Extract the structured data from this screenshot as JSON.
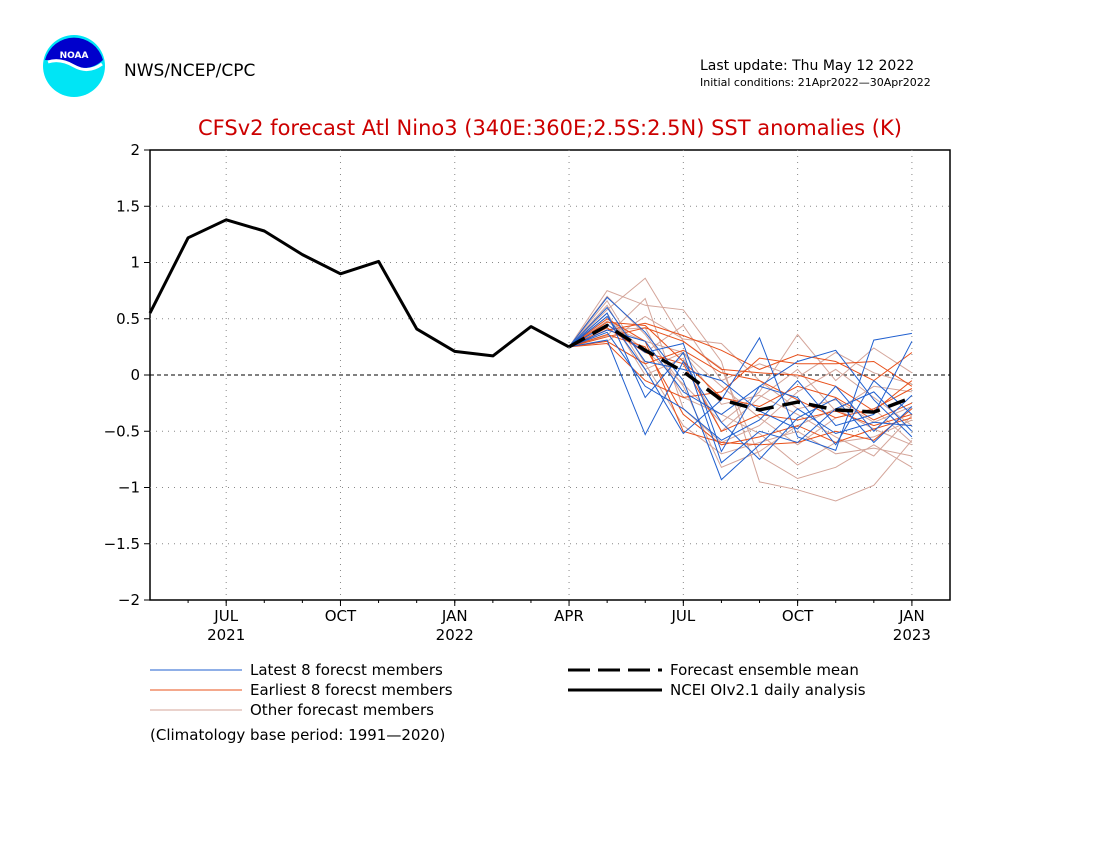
{
  "header": {
    "org": "NWS/NCEP/CPC",
    "last_update": "Last update: Thu May 12 2022",
    "initial_conditions": "Initial conditions: 21Apr2022—30Apr2022",
    "logo_text": "NOAA"
  },
  "chart_data": {
    "type": "line",
    "title": "CFSv2 forecast Atl Nino3 (340E:360E;2.5S:2.5N) SST anomalies (K)",
    "ylabel": "",
    "xlabel": "",
    "ylim": [
      -2,
      2
    ],
    "xlim": [
      "2021-05",
      "2023-02"
    ],
    "grid": true,
    "zero_line": true,
    "yticks": [
      "2",
      "1.5",
      "1",
      "0.5",
      "0",
      "−0.5",
      "−1",
      "−1.5",
      "−2"
    ],
    "ytick_values": [
      2,
      1.5,
      1,
      0.5,
      0,
      -0.5,
      -1,
      -1.5,
      -2
    ],
    "xticks": [
      {
        "month": 2,
        "label": "JUL",
        "year": "2021"
      },
      {
        "month": 5,
        "label": "OCT",
        "year": ""
      },
      {
        "month": 8,
        "label": "JAN",
        "year": "2022"
      },
      {
        "month": 11,
        "label": "APR",
        "year": ""
      },
      {
        "month": 14,
        "label": "JUL",
        "year": ""
      },
      {
        "month": 17,
        "label": "OCT",
        "year": ""
      },
      {
        "month": 20,
        "label": "JAN",
        "year": "2023"
      }
    ],
    "observed": {
      "name": "NCEI OIv2.1 daily analysis",
      "color": "#000000",
      "x": [
        0,
        1,
        2,
        3,
        4,
        5,
        6,
        7,
        8,
        9,
        10,
        11
      ],
      "values": [
        0.55,
        1.22,
        1.38,
        1.28,
        1.07,
        0.9,
        1.01,
        0.41,
        0.21,
        0.17,
        0.43,
        0.25
      ]
    },
    "ensemble_mean": {
      "name": "Forecast ensemble mean",
      "color": "#000000",
      "x": [
        11,
        12,
        13,
        14,
        15,
        16,
        17,
        18,
        19,
        20
      ],
      "values": [
        0.25,
        0.44,
        0.22,
        0.03,
        -0.22,
        -0.31,
        -0.24,
        -0.31,
        -0.33,
        -0.2
      ]
    },
    "members": {
      "x": [
        11,
        12,
        13,
        14,
        15,
        16,
        17,
        18,
        19,
        20
      ],
      "latest": {
        "name": "Latest 8 forecst members",
        "color": "#1f5fcf",
        "series": [
          [
            0.25,
            0.69,
            0.38,
            -0.05,
            -0.93,
            -0.62,
            -0.3,
            -0.52,
            -0.42,
            -0.45
          ],
          [
            0.25,
            0.52,
            0.05,
            -0.52,
            -0.22,
            0.33,
            -0.55,
            -0.67,
            0.31,
            0.37
          ],
          [
            0.25,
            0.31,
            -0.53,
            0.12,
            -0.42,
            -0.75,
            -0.38,
            -0.21,
            -0.6,
            -0.28
          ],
          [
            0.25,
            0.45,
            0.2,
            0.28,
            -0.68,
            -0.1,
            0.12,
            0.22,
            -0.22,
            -0.55
          ],
          [
            0.25,
            0.38,
            -0.1,
            -0.3,
            -0.58,
            -0.4,
            -0.05,
            -0.45,
            -0.35,
            0.3
          ],
          [
            0.25,
            0.6,
            0.12,
            0.05,
            -0.05,
            -0.32,
            -0.48,
            -0.1,
            -0.5,
            -0.18
          ],
          [
            0.25,
            0.4,
            0.3,
            -0.15,
            -0.35,
            -0.1,
            -0.2,
            -0.62,
            -0.05,
            -0.35
          ],
          [
            0.25,
            0.55,
            -0.2,
            0.2,
            -0.78,
            -0.5,
            -0.6,
            -0.3,
            -0.15,
            -0.5
          ]
        ]
      },
      "earliest": {
        "name": "Earliest 8 forecst members",
        "color": "#e8501a",
        "series": [
          [
            0.25,
            0.4,
            0.46,
            0.35,
            0.22,
            0.05,
            0.18,
            0.12,
            -0.05,
            0.2
          ],
          [
            0.25,
            0.34,
            0.42,
            0.3,
            0.05,
            0.02,
            0.0,
            -0.1,
            -0.32,
            -0.05
          ],
          [
            0.25,
            0.5,
            0.3,
            -0.5,
            -0.6,
            -0.62,
            -0.6,
            -0.5,
            -0.58,
            -0.3
          ],
          [
            0.25,
            0.42,
            0.2,
            0.1,
            -0.5,
            -0.35,
            -0.4,
            -0.32,
            -0.45,
            -0.35
          ],
          [
            0.25,
            0.28,
            -0.05,
            -0.2,
            -0.15,
            0.15,
            0.1,
            0.1,
            0.12,
            -0.1
          ],
          [
            0.25,
            0.47,
            0.44,
            0.12,
            -0.2,
            -0.28,
            -0.1,
            -0.2,
            -0.4,
            -0.25
          ],
          [
            0.25,
            0.36,
            0.25,
            -0.35,
            -0.62,
            -0.55,
            -0.45,
            -0.6,
            -0.48,
            -0.38
          ],
          [
            0.25,
            0.3,
            0.1,
            0.22,
            0.02,
            -0.05,
            -0.22,
            -0.38,
            -0.3,
            -0.12
          ]
        ]
      },
      "other": {
        "name": "Other forecast members",
        "color": "#d4a59a",
        "series": [
          [
            0.25,
            0.75,
            0.62,
            0.58,
            0.12,
            -0.95,
            -1.02,
            -1.12,
            -0.98,
            -0.58
          ],
          [
            0.25,
            0.58,
            0.86,
            0.3,
            0.06,
            -0.72,
            -0.92,
            -0.82,
            -0.62,
            -0.82
          ],
          [
            0.25,
            0.48,
            0.22,
            -0.08,
            -0.42,
            -0.15,
            0.36,
            -0.05,
            0.24,
            0.02
          ],
          [
            0.25,
            0.62,
            0.05,
            0.2,
            -0.26,
            -0.18,
            -0.35,
            -0.55,
            -0.72,
            -0.36
          ],
          [
            0.25,
            0.35,
            0.68,
            -0.3,
            -0.6,
            -0.45,
            -0.15,
            0.05,
            -0.2,
            -0.45
          ],
          [
            0.25,
            0.44,
            0.3,
            0.2,
            -0.1,
            -0.38,
            -0.62,
            -0.38,
            -0.3,
            -0.6
          ],
          [
            0.25,
            0.66,
            0.1,
            -0.45,
            -0.7,
            -0.6,
            -0.5,
            -0.7,
            -0.65,
            -0.72
          ],
          [
            0.25,
            0.3,
            0.52,
            0.32,
            0.28,
            -0.05,
            -0.3,
            -0.22,
            -0.42,
            -0.28
          ],
          [
            0.25,
            0.55,
            0.0,
            0.15,
            -0.5,
            -0.2,
            0.05,
            -0.32,
            -0.1,
            -0.15
          ],
          [
            0.25,
            0.4,
            0.42,
            -0.2,
            -0.35,
            -0.52,
            -0.8,
            -0.6,
            -0.55,
            -0.4
          ],
          [
            0.25,
            0.52,
            0.2,
            0.44,
            -0.05,
            0.1,
            -0.02,
            0.2,
            0.02,
            -0.08
          ],
          [
            0.25,
            0.7,
            0.36,
            -0.1,
            -0.82,
            -0.68,
            -0.45,
            -0.3,
            -0.48,
            -0.62
          ]
        ]
      }
    },
    "legend": {
      "placement": "below",
      "climatology_note": "(Climatology base period: 1991—2020)"
    }
  }
}
